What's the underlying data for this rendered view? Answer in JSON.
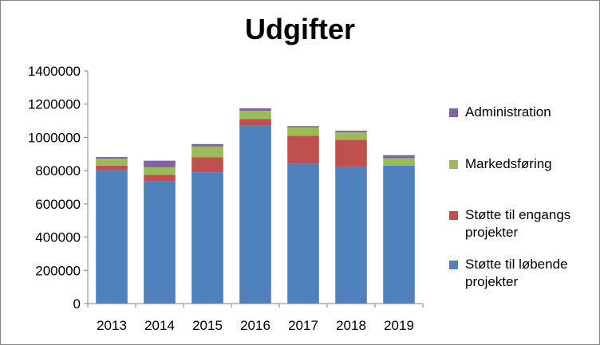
{
  "chart_data": {
    "type": "bar",
    "stacked": true,
    "title": "Udgifter",
    "xlabel": "",
    "ylabel": "",
    "categories": [
      "2013",
      "2014",
      "2015",
      "2016",
      "2017",
      "2018",
      "2019"
    ],
    "ylim": [
      0,
      1400000
    ],
    "yticks": [
      "0",
      "200000",
      "400000",
      "600000",
      "800000",
      "1000000",
      "1200000",
      "1400000"
    ],
    "grid": false,
    "legend_position": "right",
    "series": [
      {
        "name": "Støtte til løbende projekter",
        "color": "#4f81bd",
        "values": [
          800000,
          735000,
          790000,
          1070000,
          840000,
          825000,
          830000
        ]
      },
      {
        "name": "Støtte til engangs projekter",
        "color": "#c0504d",
        "values": [
          30000,
          40000,
          90000,
          40000,
          170000,
          160000,
          0
        ]
      },
      {
        "name": "Markedsføring",
        "color": "#9bbb59",
        "values": [
          42000,
          45000,
          65000,
          50000,
          50000,
          45000,
          45000
        ]
      },
      {
        "name": "Administration",
        "color": "#8064a2",
        "values": [
          10000,
          40000,
          15000,
          15000,
          8000,
          10000,
          18000
        ]
      }
    ]
  }
}
